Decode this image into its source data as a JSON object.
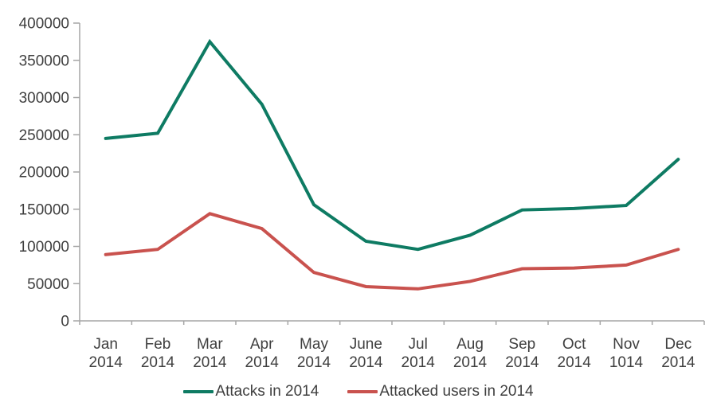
{
  "chart_data": {
    "type": "line",
    "title": "",
    "xlabel": "",
    "ylabel": "",
    "grid": false,
    "legend_position": "bottom",
    "axis_color": "#a6a6a6",
    "label_color": "#3f3f3f",
    "background": "#ffffff",
    "ylim": [
      0,
      400000
    ],
    "ytick_step": 50000,
    "ytick_labels": [
      "0",
      "50000",
      "100000",
      "150000",
      "200000",
      "250000",
      "300000",
      "350000",
      "400000"
    ],
    "categories": [
      {
        "month": "Jan",
        "year": "2014"
      },
      {
        "month": "Feb",
        "year": "2014"
      },
      {
        "month": "Mar",
        "year": "2014"
      },
      {
        "month": "Apr",
        "year": "2014"
      },
      {
        "month": "May",
        "year": "2014"
      },
      {
        "month": "June",
        "year": "2014"
      },
      {
        "month": "Jul",
        "year": "2014"
      },
      {
        "month": "Aug",
        "year": "2014"
      },
      {
        "month": "Sep",
        "year": "2014"
      },
      {
        "month": "Oct",
        "year": "2014"
      },
      {
        "month": "Nov",
        "year": "1014"
      },
      {
        "month": "Dec",
        "year": "2014"
      }
    ],
    "series": [
      {
        "name": "Attacks in 2014",
        "color": "#0e7b63",
        "values": [
          245000,
          252000,
          375000,
          291000,
          156000,
          107000,
          96000,
          115000,
          149000,
          151000,
          155000,
          217000
        ]
      },
      {
        "name": "Attacked users in 2014",
        "color": "#c9524e",
        "values": [
          89000,
          96000,
          144000,
          124000,
          65000,
          46000,
          43000,
          53000,
          70000,
          71000,
          75000,
          96000
        ]
      }
    ]
  }
}
